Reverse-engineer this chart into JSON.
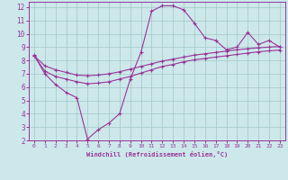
{
  "xlabel": "Windchill (Refroidissement éolien,°C)",
  "bg_color": "#cce8ea",
  "grid_color": "#aacccc",
  "line_color": "#993399",
  "border_color": "#993399",
  "xlim": [
    -0.5,
    23.5
  ],
  "ylim": [
    2,
    12.4
  ],
  "xticks": [
    0,
    1,
    2,
    3,
    4,
    5,
    6,
    7,
    8,
    9,
    10,
    11,
    12,
    13,
    14,
    15,
    16,
    17,
    18,
    19,
    20,
    21,
    22,
    23
  ],
  "yticks": [
    2,
    3,
    4,
    5,
    6,
    7,
    8,
    9,
    10,
    11,
    12
  ],
  "curve1_x": [
    0,
    1,
    2,
    3,
    4,
    5,
    6,
    7,
    8,
    9,
    10,
    11,
    12,
    13,
    14,
    15,
    16,
    17,
    18,
    19,
    20,
    21,
    22,
    23
  ],
  "curve1_y": [
    8.4,
    7.0,
    6.2,
    5.6,
    5.2,
    2.1,
    2.8,
    3.3,
    4.0,
    6.6,
    8.6,
    11.7,
    12.1,
    12.1,
    11.8,
    10.8,
    9.7,
    9.5,
    8.8,
    9.0,
    10.1,
    9.2,
    9.5,
    9.0
  ],
  "curve2_x": [
    0,
    1,
    2,
    3,
    4,
    5,
    6,
    7,
    8,
    9,
    10,
    11,
    12,
    13,
    14,
    15,
    16,
    17,
    18,
    19,
    20,
    21,
    22,
    23
  ],
  "curve2_y": [
    8.35,
    7.6,
    7.3,
    7.1,
    6.9,
    6.85,
    6.9,
    7.0,
    7.15,
    7.35,
    7.55,
    7.75,
    7.95,
    8.1,
    8.25,
    8.4,
    8.5,
    8.6,
    8.7,
    8.8,
    8.88,
    8.95,
    9.0,
    9.05
  ],
  "curve3_x": [
    0,
    1,
    2,
    3,
    4,
    5,
    6,
    7,
    8,
    9,
    10,
    11,
    12,
    13,
    14,
    15,
    16,
    17,
    18,
    19,
    20,
    21,
    22,
    23
  ],
  "curve3_y": [
    8.35,
    7.2,
    6.8,
    6.6,
    6.4,
    6.25,
    6.3,
    6.4,
    6.6,
    6.8,
    7.05,
    7.3,
    7.55,
    7.7,
    7.9,
    8.05,
    8.15,
    8.25,
    8.35,
    8.45,
    8.55,
    8.65,
    8.72,
    8.78
  ]
}
